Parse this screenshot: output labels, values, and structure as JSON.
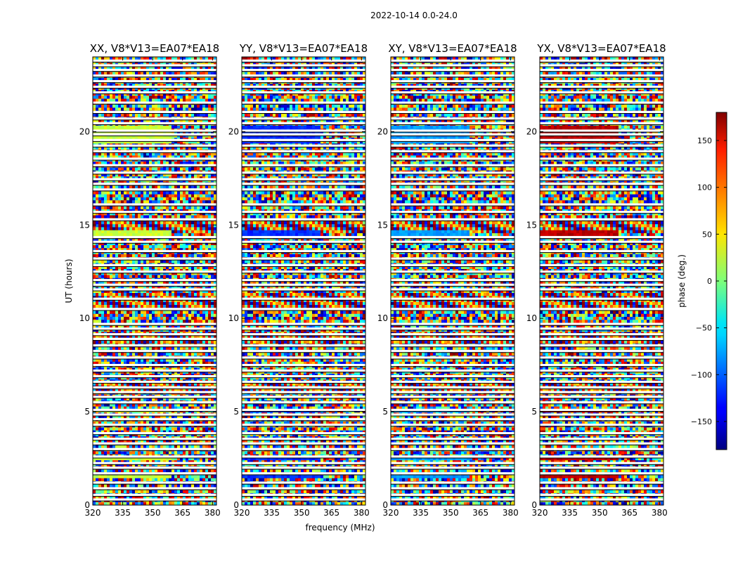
{
  "chart_data": {
    "type": "heatmap",
    "suptitle": "2022-10-14 0.0-24.0",
    "xlabel": "frequency (MHz)",
    "ylabel": "UT (hours)",
    "xlim": [
      320,
      382
    ],
    "ylim": [
      0,
      24
    ],
    "xticks": [
      320,
      335,
      350,
      365,
      380
    ],
    "yticks": [
      0,
      5,
      10,
      15,
      20
    ],
    "panels": [
      {
        "title": "XX, V8*V13=EA07*EA18",
        "dominant_phase_deg": 25
      },
      {
        "title": "YY, V8*V13=EA07*EA18",
        "dominant_phase_deg": -120
      },
      {
        "title": "XY, V8*V13=EA07*EA18",
        "dominant_phase_deg": -80
      },
      {
        "title": "YX, V8*V13=EA07*EA18",
        "dominant_phase_deg": 160
      }
    ],
    "colorbar": {
      "label": "phase (deg.)",
      "range": [
        -180,
        180
      ],
      "ticks": [
        -150,
        -100,
        -50,
        0,
        50,
        100,
        150
      ],
      "colormap": "jet"
    },
    "flagged_rows_ut": [
      0.3,
      0.55,
      0.9,
      1.2,
      1.7,
      2.0,
      2.25,
      2.6,
      3.0,
      3.3,
      3.55,
      3.85,
      4.3,
      4.6,
      4.85,
      5.1,
      5.5,
      5.8,
      6.05,
      6.3,
      6.6,
      6.9,
      7.2,
      7.5,
      7.9,
      8.25,
      8.55,
      8.9,
      9.15,
      9.45,
      9.7,
      10.5,
      11.05,
      11.55,
      11.8,
      12.05,
      12.5,
      12.85,
      13.2,
      13.6,
      14.1,
      14.35,
      15.3,
      15.7,
      16.1,
      16.9,
      17.2,
      17.45,
      17.8,
      18.2,
      18.55,
      18.95,
      19.25,
      19.55,
      19.85,
      20.05,
      20.45,
      20.7,
      21.05,
      21.55,
      22.1,
      22.4,
      22.7,
      23.0,
      23.3,
      23.55,
      23.8
    ],
    "coherent_bands_ut": [
      [
        1.4,
        1.6
      ],
      [
        2.35,
        2.5
      ],
      [
        4.95,
        5.15
      ],
      [
        9.55,
        9.8
      ],
      [
        14.45,
        14.75
      ],
      [
        19.3,
        20.25
      ]
    ]
  }
}
